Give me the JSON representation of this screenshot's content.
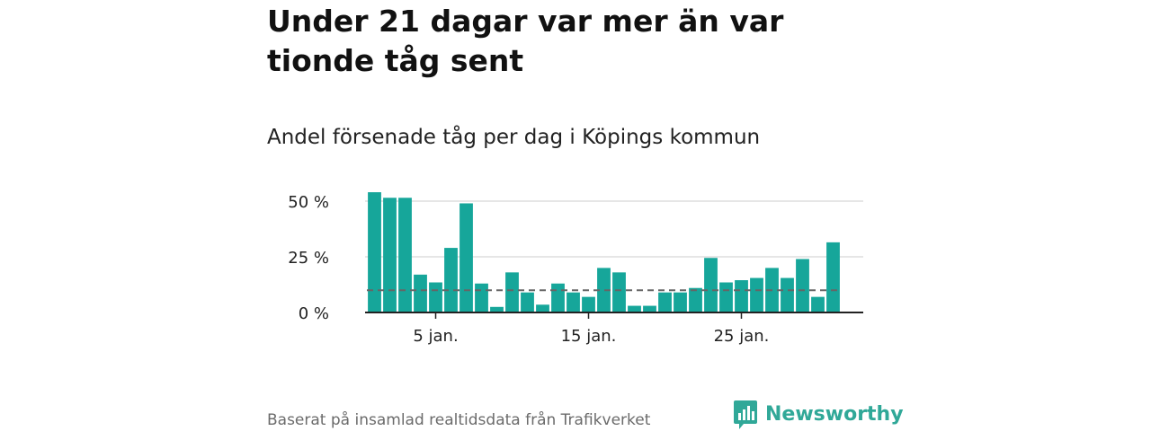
{
  "title": "Under 21 dagar var mer än var tionde tåg sent",
  "subtitle": "Andel försenade tåg per dag i Köpings kommun",
  "source": "Baserat på insamlad realtidsdata från Trafikverket",
  "brand": {
    "name": "Newsworthy",
    "icon": "newsworthy-logo-icon",
    "color": "#30a898"
  },
  "colors": {
    "bar": "#16a69a",
    "reference": "#666666",
    "grid": "#dddddd",
    "axis": "#222222"
  },
  "chart_data": {
    "type": "bar",
    "x_unit": "day of January",
    "x": [
      1,
      2,
      3,
      4,
      5,
      6,
      7,
      8,
      9,
      10,
      11,
      12,
      13,
      14,
      15,
      16,
      17,
      18,
      19,
      20,
      21,
      22,
      23,
      24,
      25,
      26,
      27,
      28,
      29,
      30,
      31
    ],
    "values": [
      54,
      51.5,
      51.5,
      17,
      13.5,
      29,
      49,
      13,
      2.5,
      18,
      9,
      3.5,
      13,
      9,
      7,
      20,
      18,
      3,
      3,
      9,
      9,
      11,
      24.5,
      13.5,
      14.5,
      15.5,
      20,
      15.5,
      24,
      7,
      31.5
    ],
    "reference_line": 10,
    "ylim": [
      0,
      56
    ],
    "y_ticks": [
      0,
      25,
      50
    ],
    "y_tick_labels": [
      "0 %",
      "25 %",
      "50 %"
    ],
    "x_ticks": [
      5,
      15,
      25
    ],
    "x_tick_labels": [
      "5 jan.",
      "15 jan.",
      "25 jan."
    ],
    "xlabel": "",
    "ylabel": "",
    "grid": true,
    "legend": "none"
  }
}
